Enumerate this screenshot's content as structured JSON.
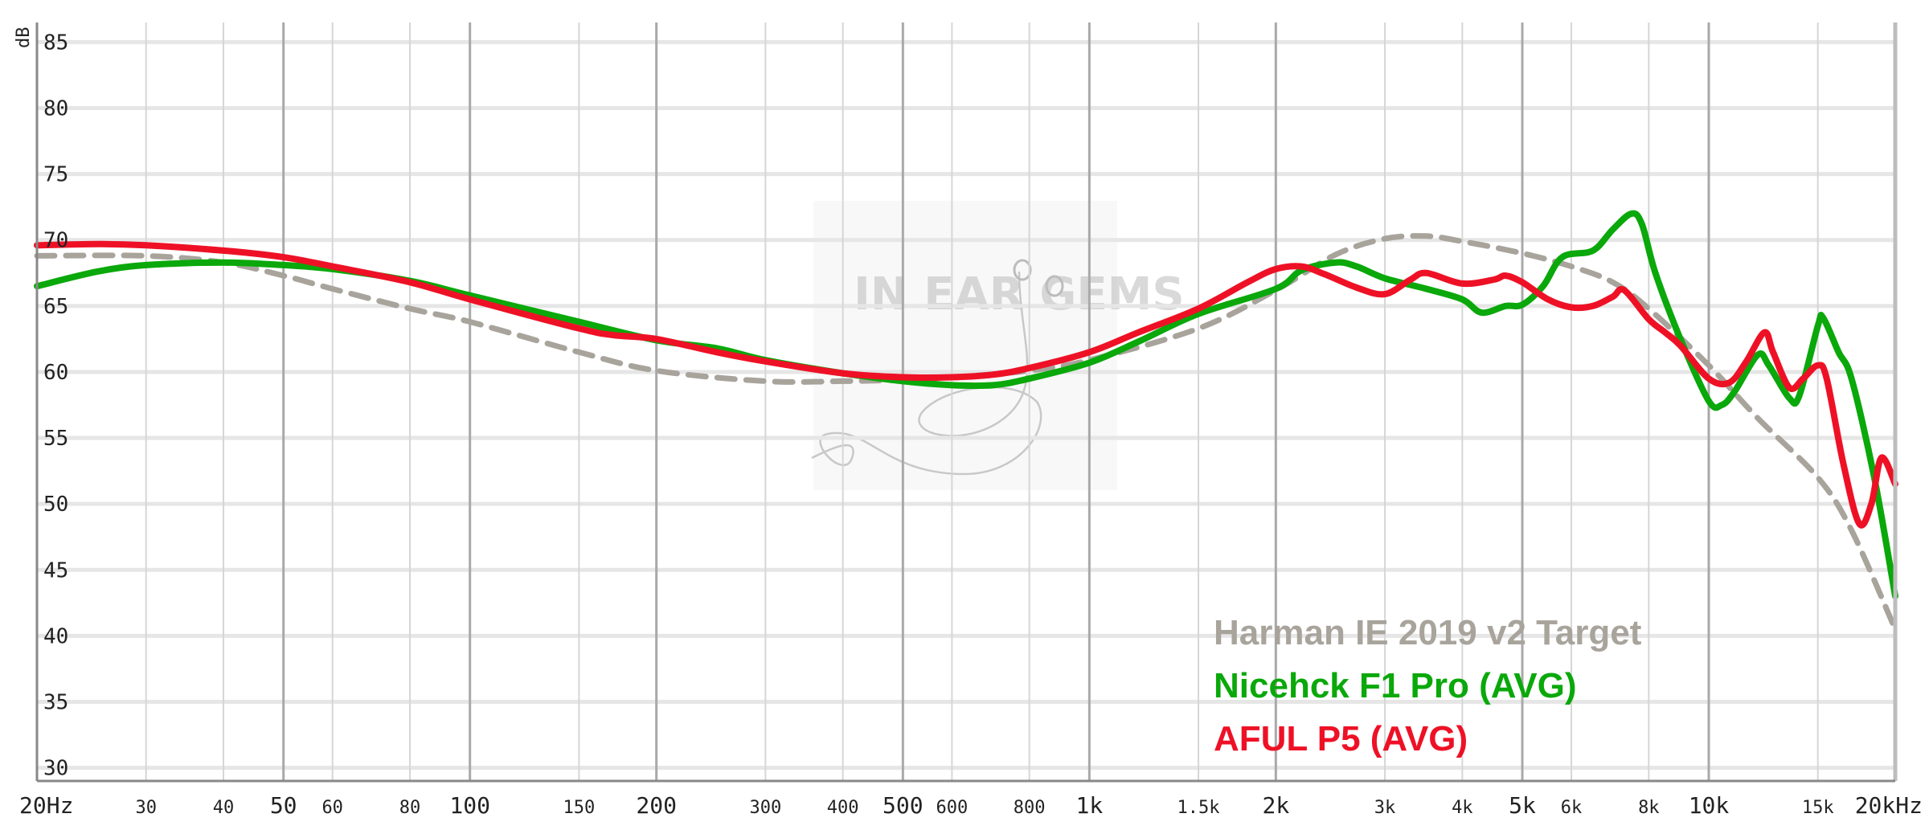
{
  "chart_data": {
    "type": "line",
    "ylabel": "dB",
    "ylim": [
      29,
      86
    ],
    "xlim": [
      20,
      20000
    ],
    "xscale": "log",
    "yticks": [
      85,
      80,
      75,
      70,
      65,
      60,
      55,
      50,
      45,
      40,
      35,
      30
    ],
    "xticks": [
      {
        "v": 20,
        "label": "20Hz",
        "major": true
      },
      {
        "v": 30,
        "label": "30",
        "major": false
      },
      {
        "v": 40,
        "label": "40",
        "major": false
      },
      {
        "v": 50,
        "label": "50",
        "major": true
      },
      {
        "v": 60,
        "label": "60",
        "major": false
      },
      {
        "v": 80,
        "label": "80",
        "major": false
      },
      {
        "v": 100,
        "label": "100",
        "major": true
      },
      {
        "v": 150,
        "label": "150",
        "major": false
      },
      {
        "v": 200,
        "label": "200",
        "major": true
      },
      {
        "v": 300,
        "label": "300",
        "major": false
      },
      {
        "v": 400,
        "label": "400",
        "major": false
      },
      {
        "v": 500,
        "label": "500",
        "major": true
      },
      {
        "v": 600,
        "label": "600",
        "major": false
      },
      {
        "v": 800,
        "label": "800",
        "major": false
      },
      {
        "v": 1000,
        "label": "1k",
        "major": true
      },
      {
        "v": 1500,
        "label": "1.5k",
        "major": false
      },
      {
        "v": 2000,
        "label": "2k",
        "major": true
      },
      {
        "v": 3000,
        "label": "3k",
        "major": false
      },
      {
        "v": 4000,
        "label": "4k",
        "major": false
      },
      {
        "v": 5000,
        "label": "5k",
        "major": true
      },
      {
        "v": 6000,
        "label": "6k",
        "major": false
      },
      {
        "v": 8000,
        "label": "8k",
        "major": false
      },
      {
        "v": 10000,
        "label": "10k",
        "major": true
      },
      {
        "v": 15000,
        "label": "15k",
        "major": false
      },
      {
        "v": 20000,
        "label": "20kHz",
        "major": true
      }
    ],
    "grid": true,
    "legend_position": "bottom-right",
    "watermark": "IN EAR GEMS",
    "series": [
      {
        "name": "Harman IE 2019 v2 Target",
        "color": "#a8a49c",
        "dashed": true,
        "points": [
          [
            20,
            68.8
          ],
          [
            30,
            68.8
          ],
          [
            40,
            68.3
          ],
          [
            50,
            67.3
          ],
          [
            60,
            66.3
          ],
          [
            80,
            64.8
          ],
          [
            100,
            63.8
          ],
          [
            150,
            61.5
          ],
          [
            200,
            60.1
          ],
          [
            300,
            59.3
          ],
          [
            400,
            59.3
          ],
          [
            500,
            59.4
          ],
          [
            600,
            59.6
          ],
          [
            800,
            60.1
          ],
          [
            1000,
            60.9
          ],
          [
            1500,
            63.3
          ],
          [
            2000,
            66.2
          ],
          [
            2500,
            68.9
          ],
          [
            3000,
            70.1
          ],
          [
            3500,
            70.3
          ],
          [
            4000,
            69.9
          ],
          [
            5000,
            69
          ],
          [
            6000,
            68
          ],
          [
            7000,
            66.8
          ],
          [
            8000,
            64.8
          ],
          [
            10000,
            60.5
          ],
          [
            12000,
            56.5
          ],
          [
            15000,
            52
          ],
          [
            17000,
            48
          ],
          [
            20000,
            40.5
          ]
        ]
      },
      {
        "name": "Nicehck F1 Pro (AVG)",
        "color": "#0aa80a",
        "dashed": false,
        "points": [
          [
            20,
            66.5
          ],
          [
            25,
            67.6
          ],
          [
            30,
            68.1
          ],
          [
            40,
            68.3
          ],
          [
            50,
            68.1
          ],
          [
            60,
            67.8
          ],
          [
            80,
            66.9
          ],
          [
            100,
            65.8
          ],
          [
            150,
            63.8
          ],
          [
            200,
            62.4
          ],
          [
            250,
            61.8
          ],
          [
            300,
            60.9
          ],
          [
            400,
            59.9
          ],
          [
            500,
            59.3
          ],
          [
            600,
            59
          ],
          [
            700,
            59
          ],
          [
            800,
            59.5
          ],
          [
            1000,
            60.7
          ],
          [
            1200,
            62.3
          ],
          [
            1500,
            64.4
          ],
          [
            2000,
            66.3
          ],
          [
            2200,
            67.7
          ],
          [
            2500,
            68.3
          ],
          [
            2700,
            68
          ],
          [
            3000,
            67.1
          ],
          [
            3500,
            66.3
          ],
          [
            4000,
            65.5
          ],
          [
            4300,
            64.5
          ],
          [
            4700,
            65
          ],
          [
            5000,
            65.1
          ],
          [
            5400,
            66.5
          ],
          [
            5800,
            68.7
          ],
          [
            6500,
            69.2
          ],
          [
            7000,
            70.8
          ],
          [
            7500,
            72
          ],
          [
            7800,
            71.2
          ],
          [
            8200,
            67.5
          ],
          [
            9000,
            62.5
          ],
          [
            10000,
            57.8
          ],
          [
            10500,
            57.5
          ],
          [
            11000,
            58.5
          ],
          [
            12000,
            61.3
          ],
          [
            12500,
            60.5
          ],
          [
            13500,
            58
          ],
          [
            14000,
            58.2
          ],
          [
            15000,
            63.5
          ],
          [
            15300,
            64.1
          ],
          [
            16200,
            61.5
          ],
          [
            17000,
            59.5
          ],
          [
            18500,
            52
          ],
          [
            20000,
            43
          ]
        ]
      },
      {
        "name": "AFUL P5 (AVG)",
        "color": "#ee1126",
        "dashed": false,
        "points": [
          [
            20,
            69.6
          ],
          [
            25,
            69.7
          ],
          [
            30,
            69.6
          ],
          [
            40,
            69.2
          ],
          [
            50,
            68.7
          ],
          [
            60,
            68
          ],
          [
            80,
            66.8
          ],
          [
            100,
            65.5
          ],
          [
            150,
            63.3
          ],
          [
            170,
            62.8
          ],
          [
            200,
            62.5
          ],
          [
            250,
            61.5
          ],
          [
            300,
            60.8
          ],
          [
            400,
            59.9
          ],
          [
            500,
            59.6
          ],
          [
            600,
            59.6
          ],
          [
            700,
            59.8
          ],
          [
            800,
            60.3
          ],
          [
            1000,
            61.5
          ],
          [
            1200,
            63
          ],
          [
            1500,
            64.8
          ],
          [
            1800,
            66.8
          ],
          [
            2000,
            67.8
          ],
          [
            2200,
            68
          ],
          [
            2400,
            67.4
          ],
          [
            2700,
            66.4
          ],
          [
            3000,
            65.9
          ],
          [
            3300,
            67
          ],
          [
            3500,
            67.5
          ],
          [
            4000,
            66.7
          ],
          [
            4500,
            67
          ],
          [
            4700,
            67.3
          ],
          [
            5000,
            66.8
          ],
          [
            5500,
            65.5
          ],
          [
            6000,
            64.9
          ],
          [
            6500,
            65
          ],
          [
            7000,
            65.7
          ],
          [
            7300,
            66.2
          ],
          [
            8000,
            64
          ],
          [
            8500,
            63
          ],
          [
            9000,
            62
          ],
          [
            10000,
            59.5
          ],
          [
            10800,
            59.2
          ],
          [
            11500,
            60.8
          ],
          [
            12300,
            63
          ],
          [
            12700,
            61.5
          ],
          [
            13500,
            58.8
          ],
          [
            14200,
            59.5
          ],
          [
            15000,
            60.5
          ],
          [
            15500,
            59.5
          ],
          [
            16500,
            53
          ],
          [
            17500,
            48.5
          ],
          [
            18300,
            50
          ],
          [
            19000,
            53.5
          ],
          [
            20000,
            51.5
          ]
        ]
      }
    ]
  }
}
